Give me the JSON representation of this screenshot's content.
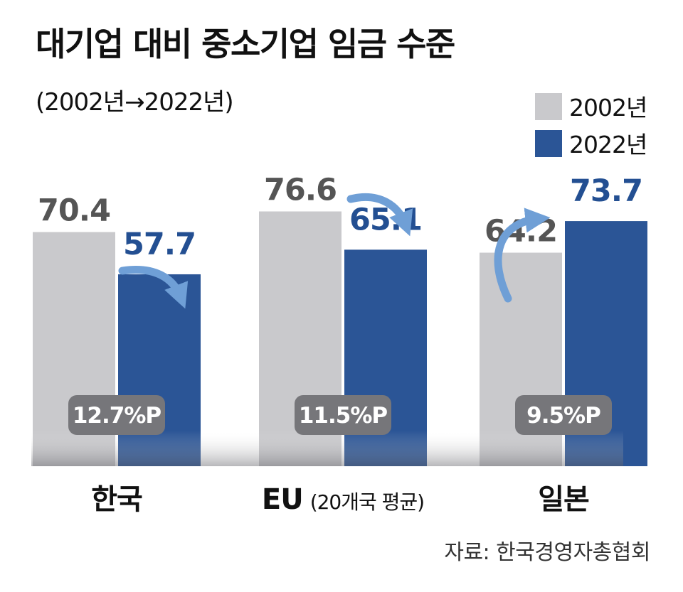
{
  "chart_data": {
    "type": "bar",
    "title": "대기업 대비 중소기업 임금 수준",
    "subtitle": "(2002년→2022년)",
    "categories": [
      "한국",
      "EU",
      "일본"
    ],
    "category_notes": [
      "",
      "(20개국 평균)",
      ""
    ],
    "series": [
      {
        "name": "2002년",
        "values": [
          70.4,
          76.6,
          64.2
        ],
        "color": "#c9c9cc",
        "label_color": "#555555"
      },
      {
        "name": "2022년",
        "values": [
          57.7,
          65.1,
          73.7
        ],
        "color": "#2b5596",
        "label_color": "#234f92"
      }
    ],
    "differences": [
      "12.7%P",
      "11.5%P",
      "9.5%P"
    ],
    "legend_position": "top-right",
    "source": "자료: 한국경영자총협회"
  }
}
